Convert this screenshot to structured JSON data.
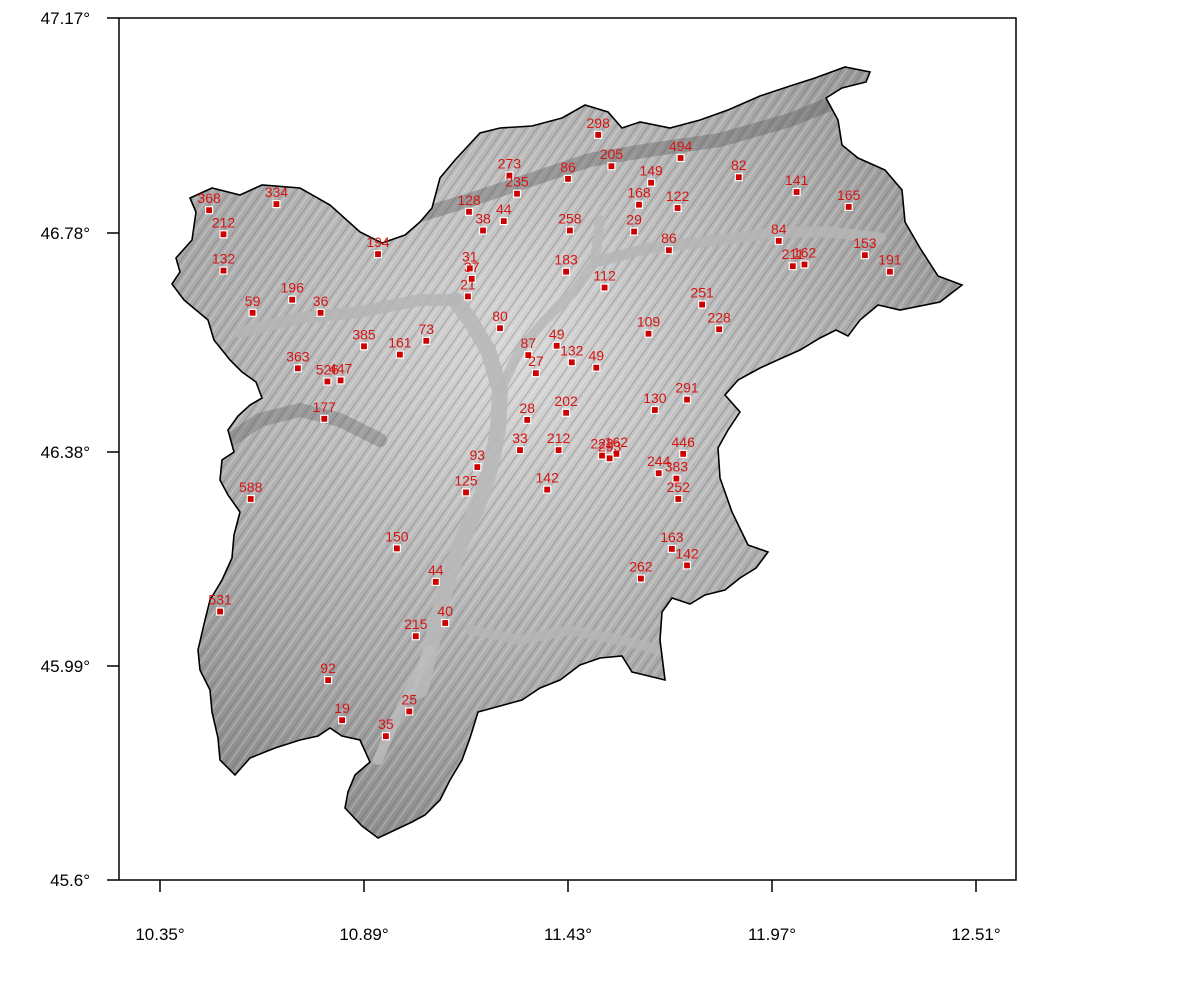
{
  "map": {
    "x_ticks": [
      "10.35°",
      "10.89°",
      "11.43°",
      "11.97°",
      "12.51°"
    ],
    "y_ticks": [
      "47.17°",
      "46.78°",
      "46.38°",
      "45.99°",
      "45.6°"
    ],
    "x_range": [
      10.35,
      12.51
    ],
    "y_range": [
      45.6,
      47.17
    ],
    "marker_color": "#cc0000",
    "label_color": "#d61414",
    "relief_shading": "grayscale hillshade",
    "stations": [
      {
        "label": "298",
        "lon": 11.51,
        "lat": 46.957
      },
      {
        "label": "205",
        "lon": 11.545,
        "lat": 46.9
      },
      {
        "label": "494",
        "lon": 11.728,
        "lat": 46.915
      },
      {
        "label": "273",
        "lon": 11.275,
        "lat": 46.883
      },
      {
        "label": "86",
        "lon": 11.43,
        "lat": 46.877
      },
      {
        "label": "82",
        "lon": 11.882,
        "lat": 46.88
      },
      {
        "label": "149",
        "lon": 11.65,
        "lat": 46.87
      },
      {
        "label": "235",
        "lon": 11.295,
        "lat": 46.85
      },
      {
        "label": "141",
        "lon": 12.035,
        "lat": 46.853
      },
      {
        "label": "368",
        "lon": 10.48,
        "lat": 46.82
      },
      {
        "label": "334",
        "lon": 10.658,
        "lat": 46.831
      },
      {
        "label": "168",
        "lon": 11.618,
        "lat": 46.83
      },
      {
        "label": "122",
        "lon": 11.72,
        "lat": 46.824
      },
      {
        "label": "165",
        "lon": 12.173,
        "lat": 46.826
      },
      {
        "label": "128",
        "lon": 11.168,
        "lat": 46.817
      },
      {
        "label": "44",
        "lon": 11.26,
        "lat": 46.8
      },
      {
        "label": "258",
        "lon": 11.435,
        "lat": 46.783
      },
      {
        "label": "29",
        "lon": 11.605,
        "lat": 46.781
      },
      {
        "label": "212",
        "lon": 10.518,
        "lat": 46.776
      },
      {
        "label": "38",
        "lon": 11.205,
        "lat": 46.783
      },
      {
        "label": "84",
        "lon": 11.988,
        "lat": 46.764
      },
      {
        "label": "86",
        "lon": 11.697,
        "lat": 46.747
      },
      {
        "label": "194",
        "lon": 10.927,
        "lat": 46.74
      },
      {
        "label": "153",
        "lon": 12.216,
        "lat": 46.738
      },
      {
        "label": "132",
        "lon": 10.518,
        "lat": 46.71
      },
      {
        "label": "31",
        "lon": 11.17,
        "lat": 46.714
      },
      {
        "label": "183",
        "lon": 11.425,
        "lat": 46.708
      },
      {
        "label": "211",
        "lon": 12.025,
        "lat": 46.718
      },
      {
        "label": "162",
        "lon": 12.056,
        "lat": 46.721
      },
      {
        "label": "191",
        "lon": 12.282,
        "lat": 46.708
      },
      {
        "label": "37",
        "lon": 11.175,
        "lat": 46.695
      },
      {
        "label": "112",
        "lon": 11.527,
        "lat": 46.679
      },
      {
        "label": "196",
        "lon": 10.7,
        "lat": 46.657
      },
      {
        "label": "21",
        "lon": 11.165,
        "lat": 46.663
      },
      {
        "label": "59",
        "lon": 10.595,
        "lat": 46.633
      },
      {
        "label": "36",
        "lon": 10.775,
        "lat": 46.633
      },
      {
        "label": "251",
        "lon": 11.785,
        "lat": 46.648
      },
      {
        "label": "80",
        "lon": 11.25,
        "lat": 46.605
      },
      {
        "label": "228",
        "lon": 11.83,
        "lat": 46.603
      },
      {
        "label": "109",
        "lon": 11.643,
        "lat": 46.595
      },
      {
        "label": "73",
        "lon": 11.055,
        "lat": 46.582
      },
      {
        "label": "385",
        "lon": 10.89,
        "lat": 46.572
      },
      {
        "label": "161",
        "lon": 10.985,
        "lat": 46.557
      },
      {
        "label": "49",
        "lon": 11.4,
        "lat": 46.573
      },
      {
        "label": "87",
        "lon": 11.325,
        "lat": 46.556
      },
      {
        "label": "363",
        "lon": 10.715,
        "lat": 46.532
      },
      {
        "label": "49",
        "lon": 11.505,
        "lat": 46.533
      },
      {
        "label": "132",
        "lon": 11.44,
        "lat": 46.543
      },
      {
        "label": "27",
        "lon": 11.345,
        "lat": 46.523
      },
      {
        "label": "526",
        "lon": 10.793,
        "lat": 46.508
      },
      {
        "label": "447",
        "lon": 10.828,
        "lat": 46.51
      },
      {
        "label": "291",
        "lon": 11.745,
        "lat": 46.475
      },
      {
        "label": "130",
        "lon": 11.66,
        "lat": 46.456
      },
      {
        "label": "202",
        "lon": 11.425,
        "lat": 46.451
      },
      {
        "label": "177",
        "lon": 10.785,
        "lat": 46.44
      },
      {
        "label": "28",
        "lon": 11.322,
        "lat": 46.438
      },
      {
        "label": "446",
        "lon": 11.735,
        "lat": 46.376
      },
      {
        "label": "222",
        "lon": 11.52,
        "lat": 46.373
      },
      {
        "label": "162",
        "lon": 11.558,
        "lat": 46.376
      },
      {
        "label": "33",
        "lon": 11.303,
        "lat": 46.383
      },
      {
        "label": "212",
        "lon": 11.405,
        "lat": 46.383
      },
      {
        "label": "293",
        "lon": 11.54,
        "lat": 46.368
      },
      {
        "label": "93",
        "lon": 11.19,
        "lat": 46.352
      },
      {
        "label": "244",
        "lon": 11.67,
        "lat": 46.341
      },
      {
        "label": "383",
        "lon": 11.717,
        "lat": 46.331
      },
      {
        "label": "125",
        "lon": 11.16,
        "lat": 46.306
      },
      {
        "label": "142",
        "lon": 11.375,
        "lat": 46.311
      },
      {
        "label": "588",
        "lon": 10.59,
        "lat": 46.294
      },
      {
        "label": "252",
        "lon": 11.722,
        "lat": 46.294
      },
      {
        "label": "150",
        "lon": 10.977,
        "lat": 46.204
      },
      {
        "label": "163",
        "lon": 11.705,
        "lat": 46.203
      },
      {
        "label": "142",
        "lon": 11.745,
        "lat": 46.173
      },
      {
        "label": "262",
        "lon": 11.623,
        "lat": 46.149
      },
      {
        "label": "44",
        "lon": 11.08,
        "lat": 46.143
      },
      {
        "label": "531",
        "lon": 10.509,
        "lat": 46.089
      },
      {
        "label": "40",
        "lon": 11.105,
        "lat": 46.068
      },
      {
        "label": "215",
        "lon": 11.027,
        "lat": 46.044
      },
      {
        "label": "92",
        "lon": 10.795,
        "lat": 45.964
      },
      {
        "label": "25",
        "lon": 11.01,
        "lat": 45.907
      },
      {
        "label": "19",
        "lon": 10.832,
        "lat": 45.891
      },
      {
        "label": "35",
        "lon": 10.948,
        "lat": 45.862
      }
    ]
  }
}
